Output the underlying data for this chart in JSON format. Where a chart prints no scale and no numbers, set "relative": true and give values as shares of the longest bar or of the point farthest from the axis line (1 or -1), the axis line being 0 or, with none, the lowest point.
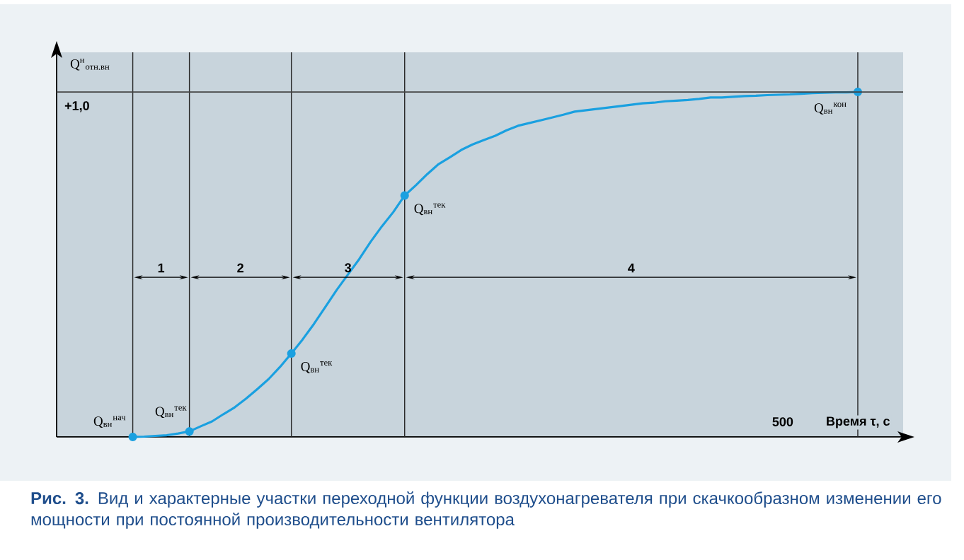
{
  "chart_data": {
    "type": "line",
    "title": "**Рис. 3.** Вид и характерные участки переходной функции воздухонагревателя при скачкообразном изменении его мощности при постоянной производительности вентилятора",
    "xlabel": "Время τ, с",
    "ylabel": "Q$^{н}$$_{отн.вн}$",
    "relative": true,
    "categories": [
      null,
      null,
      null,
      null,
      null,
      null,
      null,
      null,
      null,
      null,
      null,
      null,
      null,
      null,
      null,
      null,
      null,
      null,
      null,
      null,
      null,
      null,
      null,
      null,
      null,
      null,
      null,
      null,
      null,
      null,
      null,
      null,
      null,
      null,
      null,
      null,
      null,
      null,
      null,
      null,
      null,
      null,
      null,
      null,
      null,
      null,
      null,
      null,
      null,
      null,
      null,
      null,
      null,
      null,
      null,
      null,
      null,
      null,
      null,
      null,
      null,
      null,
      null,
      null,
      null
    ],
    "series": [
      {
        "color": "#1aa0e0",
        "values": [
          0,
          0.001,
          0.003,
          0.005,
          0.01,
          0.016,
          0.031,
          0.045,
          0.066,
          0.086,
          0.111,
          0.139,
          0.168,
          0.203,
          0.242,
          0.283,
          0.328,
          0.377,
          0.426,
          0.471,
          0.516,
          0.566,
          0.611,
          0.652,
          0.7,
          0.73,
          0.762,
          0.791,
          0.811,
          0.832,
          0.848,
          0.861,
          0.873,
          0.889,
          0.902,
          0.91,
          0.918,
          0.926,
          0.934,
          0.943,
          0.947,
          0.951,
          0.955,
          0.959,
          0.963,
          0.967,
          0.969,
          0.973,
          0.975,
          0.977,
          0.98,
          0.984,
          0.984,
          0.986,
          0.988,
          0.989,
          0.991,
          0.992,
          0.993,
          0.995,
          0.997,
          0.998,
          0.999,
          0.999,
          1.0
        ]
      }
    ],
    "ref_lines": [
      {
        "axis": "y",
        "value": 1,
        "color": "#444444"
      }
    ],
    "grid": true,
    "annotations": [
      "Q$_{вн}$$^{нач}$",
      "Q$_{вн}$$^{тек}$",
      "Q$_{вн}$$^{тек}$",
      "Q$_{вн}$$^{тек}$",
      "Q$_{вн}$$^{кон}$",
      "500",
      "+1,0",
      "1",
      "2",
      "3",
      "4"
    ]
  }
}
